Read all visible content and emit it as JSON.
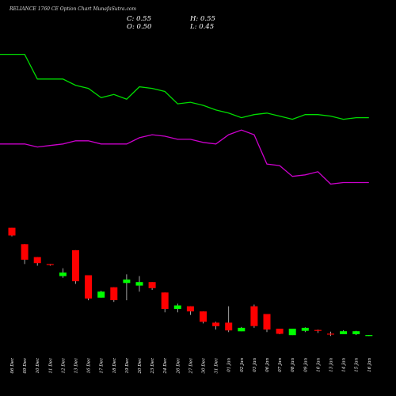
{
  "header": {
    "title": "RELIANCE 1760  CE Option  Chart MunafaSutra.com",
    "close": "C: 0.55",
    "open": "O: 0.50",
    "high": "H: 0.55",
    "low": "L: 0.45"
  },
  "colors": {
    "background": "#000000",
    "up": "#00ff00",
    "down": "#ff0000",
    "green_line": "#00dd00",
    "purple_line": "#cc00cc",
    "text": "#ffffff"
  },
  "chart_data": {
    "type": "candlestick",
    "title": "RELIANCE 1760  CE Option  Chart MunafaSutra.com",
    "categories": [
      "06 Dec",
      "09 Dec",
      "10 Dec",
      "11 Dec",
      "12 Dec",
      "13 Dec",
      "16 Dec",
      "17 Dec",
      "18 Dec",
      "19 Dec",
      "20 Dec",
      "23 Dec",
      "24 Dec",
      "26 Dec",
      "27 Dec",
      "30 Dec",
      "31 Dec",
      "01 Jan",
      "02 Jan",
      "03 Jan",
      "06 Jan",
      "07 Jan",
      "08 Jan",
      "09 Jan",
      "10 Jan",
      "13 Jan",
      "14 Jan",
      "15 Jan",
      "16 Jan"
    ],
    "candles": [
      {
        "o": 13.0,
        "h": 13.0,
        "l": 12.0,
        "c": 12.1
      },
      {
        "o": 11.1,
        "h": 11.1,
        "l": 8.8,
        "c": 9.3
      },
      {
        "o": 9.6,
        "h": 9.6,
        "l": 8.6,
        "c": 8.9
      },
      {
        "o": 8.8,
        "h": 8.8,
        "l": 8.6,
        "c": 8.75
      },
      {
        "o": 7.4,
        "h": 8.3,
        "l": 7.2,
        "c": 7.8
      },
      {
        "o": 10.4,
        "h": 10.4,
        "l": 6.5,
        "c": 6.8
      },
      {
        "o": 7.5,
        "h": 7.5,
        "l": 4.6,
        "c": 4.8
      },
      {
        "o": 4.9,
        "h": 5.7,
        "l": 4.9,
        "c": 5.6
      },
      {
        "o": 6.1,
        "h": 6.1,
        "l": 4.4,
        "c": 4.6
      },
      {
        "o": 6.6,
        "h": 7.6,
        "l": 4.6,
        "c": 7.0
      },
      {
        "o": 6.3,
        "h": 7.4,
        "l": 5.6,
        "c": 6.7
      },
      {
        "o": 6.7,
        "h": 6.7,
        "l": 5.8,
        "c": 6.0
      },
      {
        "o": 5.5,
        "h": 5.5,
        "l": 3.2,
        "c": 3.6
      },
      {
        "o": 3.6,
        "h": 4.2,
        "l": 3.2,
        "c": 4.0
      },
      {
        "o": 3.9,
        "h": 3.9,
        "l": 2.9,
        "c": 3.3
      },
      {
        "o": 3.3,
        "h": 3.3,
        "l": 1.9,
        "c": 2.1
      },
      {
        "o": 2.0,
        "h": 2.1,
        "l": 1.2,
        "c": 1.6
      },
      {
        "o": 2.0,
        "h": 3.9,
        "l": 0.9,
        "c": 1.1
      },
      {
        "o": 1.0,
        "h": 1.5,
        "l": 1.0,
        "c": 1.4
      },
      {
        "o": 3.9,
        "h": 4.1,
        "l": 1.4,
        "c": 1.6
      },
      {
        "o": 3.0,
        "h": 3.0,
        "l": 0.9,
        "c": 1.2
      },
      {
        "o": 1.3,
        "h": 1.3,
        "l": 0.65,
        "c": 0.7
      },
      {
        "o": 0.55,
        "h": 1.3,
        "l": 0.55,
        "c": 1.3
      },
      {
        "o": 1.05,
        "h": 1.45,
        "l": 0.9,
        "c": 1.4
      },
      {
        "o": 1.15,
        "h": 1.2,
        "l": 0.8,
        "c": 1.1
      },
      {
        "o": 0.72,
        "h": 0.95,
        "l": 0.45,
        "c": 0.7
      },
      {
        "o": 0.65,
        "h": 1.1,
        "l": 0.65,
        "c": 1.0
      },
      {
        "o": 0.65,
        "h": 1.05,
        "l": 0.55,
        "c": 1.0
      },
      {
        "o": 0.5,
        "h": 0.55,
        "l": 0.45,
        "c": 0.55
      }
    ],
    "green_line": [
      1738,
      1738,
      1722,
      1722,
      1722,
      1718,
      1716,
      1710,
      1712,
      1709,
      1717,
      1716,
      1714,
      1706,
      1707,
      1705,
      1702,
      1700,
      1697,
      1699,
      1700,
      1698,
      1696,
      1699,
      1699,
      1698,
      1696,
      1697,
      1697
    ],
    "purple_line": [
      1680,
      1680,
      1678,
      1679,
      1680,
      1682,
      1682,
      1680,
      1680,
      1680,
      1684,
      1686,
      1685,
      1683,
      1683,
      1681,
      1680,
      1686,
      1689,
      1686,
      1667,
      1666,
      1659,
      1660,
      1662,
      1654,
      1655,
      1655,
      1655
    ],
    "ylim": [
      -1,
      16
    ],
    "grid": false
  }
}
